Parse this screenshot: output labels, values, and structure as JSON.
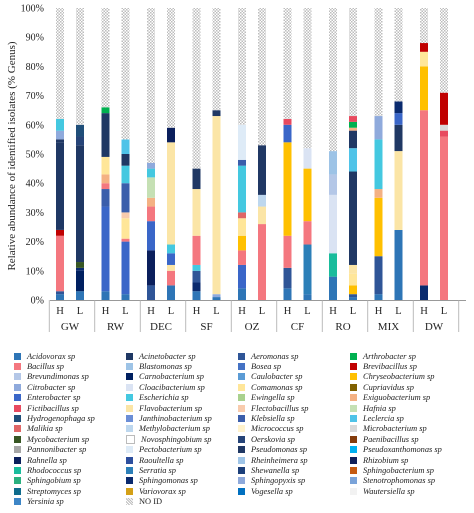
{
  "chart_data": {
    "type": "bar",
    "stacked": true,
    "ylabel": "Relative abundance of identified isolates (% Genus)",
    "ylim": [
      0,
      100
    ],
    "yticks": [
      "0%",
      "10%",
      "20%",
      "30%",
      "40%",
      "50%",
      "60%",
      "70%",
      "80%",
      "90%",
      "100%"
    ],
    "groups": [
      "GW",
      "RW",
      "DEC",
      "SF",
      "OZ",
      "CF",
      "RO",
      "MIX",
      "DW"
    ],
    "bar_labels": [
      "H",
      "L"
    ],
    "legend_placement": "bottom",
    "legend": [
      {
        "name": "Acidovorax sp",
        "color": "#2e75b6"
      },
      {
        "name": "Acinetobacter sp",
        "color": "#1f3864"
      },
      {
        "name": "Aeromonas sp",
        "color": "#2f5597"
      },
      {
        "name": "Arthrobacter sp",
        "color": "#00b050"
      },
      {
        "name": "Bacillus sp",
        "color": "#f4777f"
      },
      {
        "name": "Blastomonas sp",
        "color": "#9dc3e6"
      },
      {
        "name": "Bosea sp",
        "color": "#4472c4"
      },
      {
        "name": "Brevibacillus sp",
        "color": "#c00000"
      },
      {
        "name": "Brevundimonas sp",
        "color": "#b4c7e7"
      },
      {
        "name": "Carnobacterium sp",
        "color": "#002060"
      },
      {
        "name": "Caulobacter sp",
        "color": "#5b9bd5"
      },
      {
        "name": "Chryseobacterium sp",
        "color": "#ffc000"
      },
      {
        "name": "Citrobacter sp",
        "color": "#8faadc"
      },
      {
        "name": "Cloacibacterium sp",
        "color": "#dae3f3"
      },
      {
        "name": "Comamonas sp",
        "color": "#ffe699"
      },
      {
        "name": "Cupriavidus sp",
        "color": "#7f6000"
      },
      {
        "name": "Enterobacter sp",
        "color": "#3a66c8"
      },
      {
        "name": "Escherichia sp",
        "color": "#44c8e0"
      },
      {
        "name": "Ewingella sp",
        "color": "#a9d18e"
      },
      {
        "name": "Exiguobacterium sp",
        "color": "#f4b183"
      },
      {
        "name": "Fictibacillus sp",
        "color": "#e84a5f"
      },
      {
        "name": "Flavobacterium sp",
        "color": "#fbe5a6"
      },
      {
        "name": "Flectobacillus sp",
        "color": "#f8cbad"
      },
      {
        "name": "Hafnia sp",
        "color": "#c5e0b4"
      },
      {
        "name": "Hydrogenophaga sp",
        "color": "#1f4e79"
      },
      {
        "name": "Janthinobacterium sp",
        "color": "#6b8ed6"
      },
      {
        "name": "Klebsiella sp",
        "color": "#3b5eab"
      },
      {
        "name": "Leclercia sp",
        "color": "#4fc3e8"
      },
      {
        "name": "Malikia sp",
        "color": "#e06666"
      },
      {
        "name": "Methylobacterium sp",
        "color": "#bdd7ee"
      },
      {
        "name": "Micrococcus sp",
        "color": "#fff2cc"
      },
      {
        "name": "Microbacterium sp",
        "color": "#d9d9d9"
      },
      {
        "name": "Mycobacterium sp",
        "color": "#375623"
      },
      {
        "name": "Novosphingobium sp",
        "color": "#ffffff"
      },
      {
        "name": "Oerskovia sp",
        "color": "#264478"
      },
      {
        "name": "Paenibacillus sp",
        "color": "#843c0c"
      },
      {
        "name": "Pannonibacter sp",
        "color": "#a6a6a6"
      },
      {
        "name": "Pectobacterium sp",
        "color": "#deebf7"
      },
      {
        "name": "Pseudomonas sp",
        "color": "#203864"
      },
      {
        "name": "Pseudoxanthomonas sp",
        "color": "#00b0f0"
      },
      {
        "name": "Rahnella sp",
        "color": "#0b1f5c"
      },
      {
        "name": "Raoultella sp",
        "color": "#2d4f9e"
      },
      {
        "name": "Rheinheimera sp",
        "color": "#9fc5e8"
      },
      {
        "name": "Rhizobium sp",
        "color": "#10205a"
      },
      {
        "name": "Rhodococcus sp",
        "color": "#1abc9c"
      },
      {
        "name": "Serratia sp",
        "color": "#2c7fb8"
      },
      {
        "name": "Shewanella sp",
        "color": "#1c3f7a"
      },
      {
        "name": "Sphingobacterium sp",
        "color": "#c55a11"
      },
      {
        "name": "Sphingobium sp",
        "color": "#2ab07f"
      },
      {
        "name": "Sphingomonas sp",
        "color": "#0a2a6e"
      },
      {
        "name": "Sphingopyxis sp",
        "color": "#8ea9db"
      },
      {
        "name": "Stenotrophomonas sp",
        "color": "#7aa3d9"
      },
      {
        "name": "Streptomyces sp",
        "color": "#0e6b8c"
      },
      {
        "name": "Variovorax sp",
        "color": "#d4a017"
      },
      {
        "name": "Vogesella sp",
        "color": "#0070c0"
      },
      {
        "name": "Wautersiella sp",
        "color": "#f2f2f2"
      },
      {
        "name": "Yersinia sp",
        "color": "#3d85c6"
      },
      {
        "name": "NO ID",
        "color": "#d0d0d0"
      }
    ],
    "bars": [
      {
        "group": "GW",
        "label": "H",
        "segments": [
          {
            "name": "Acidovorax sp",
            "value": 2
          },
          {
            "name": "Aeromonas sp",
            "value": 1
          },
          {
            "name": "Bacillus sp",
            "value": 19
          },
          {
            "name": "Brevibacillus sp",
            "value": 2
          },
          {
            "name": "Acinetobacter sp",
            "value": 30
          },
          {
            "name": "Pseudomonas sp",
            "value": 1
          },
          {
            "name": "Citrobacter sp",
            "value": 3
          },
          {
            "name": "Escherichia sp",
            "value": 4
          },
          {
            "name": "NO ID",
            "value": 38
          }
        ]
      },
      {
        "group": "GW",
        "label": "L",
        "segments": [
          {
            "name": "Acidovorax sp",
            "value": 3
          },
          {
            "name": "Carnobacterium sp",
            "value": 7
          },
          {
            "name": "Sphingomonas sp",
            "value": 1
          },
          {
            "name": "Mycobacterium sp",
            "value": 2
          },
          {
            "name": "Pseudomonas sp",
            "value": 40
          },
          {
            "name": "Oerskovia sp",
            "value": 3
          },
          {
            "name": "Hydrogenophaga sp",
            "value": 4
          },
          {
            "name": "NO ID",
            "value": 40
          }
        ]
      },
      {
        "group": "RW",
        "label": "H",
        "segments": [
          {
            "name": "Acidovorax sp",
            "value": 3
          },
          {
            "name": "Enterobacter sp",
            "value": 29
          },
          {
            "name": "Klebsiella sp",
            "value": 6
          },
          {
            "name": "Bacillus sp",
            "value": 2
          },
          {
            "name": "Exiguobacterium sp",
            "value": 3
          },
          {
            "name": "Comamonas sp",
            "value": 6
          },
          {
            "name": "Acinetobacter sp",
            "value": 15
          },
          {
            "name": "Arthrobacter sp",
            "value": 2
          },
          {
            "name": "NO ID",
            "value": 34
          }
        ]
      },
      {
        "group": "RW",
        "label": "L",
        "segments": [
          {
            "name": "Acidovorax sp",
            "value": 2
          },
          {
            "name": "Enterobacter sp",
            "value": 18
          },
          {
            "name": "Bacillus sp",
            "value": 1
          },
          {
            "name": "Comamonas sp",
            "value": 7
          },
          {
            "name": "Flectobacillus sp",
            "value": 2
          },
          {
            "name": "Klebsiella sp",
            "value": 10
          },
          {
            "name": "Escherichia sp",
            "value": 6
          },
          {
            "name": "Pseudomonas sp",
            "value": 4
          },
          {
            "name": "Leclercia sp",
            "value": 5
          },
          {
            "name": "NO ID",
            "value": 45
          }
        ]
      },
      {
        "group": "DEC",
        "label": "H",
        "segments": [
          {
            "name": "Aeromonas sp",
            "value": 5
          },
          {
            "name": "Rahnella sp",
            "value": 12
          },
          {
            "name": "Enterobacter sp",
            "value": 10
          },
          {
            "name": "Bacillus sp",
            "value": 5
          },
          {
            "name": "Exiguobacterium sp",
            "value": 3
          },
          {
            "name": "Hafnia sp",
            "value": 7
          },
          {
            "name": "Escherichia sp",
            "value": 3
          },
          {
            "name": "Citrobacter sp",
            "value": 2
          },
          {
            "name": "NO ID",
            "value": 53
          }
        ]
      },
      {
        "group": "DEC",
        "label": "L",
        "segments": [
          {
            "name": "Acidovorax sp",
            "value": 5
          },
          {
            "name": "Bacillus sp",
            "value": 5
          },
          {
            "name": "Flavobacterium sp",
            "value": 2
          },
          {
            "name": "Enterobacter sp",
            "value": 4
          },
          {
            "name": "Escherichia sp",
            "value": 3
          },
          {
            "name": "Flavobacterium sp",
            "value": 35
          },
          {
            "name": "Rahnella sp",
            "value": 5
          },
          {
            "name": "NO ID",
            "value": 41
          }
        ]
      },
      {
        "group": "SF",
        "label": "H",
        "segments": [
          {
            "name": "Acidovorax sp",
            "value": 3
          },
          {
            "name": "Sphingomonas sp",
            "value": 3
          },
          {
            "name": "Aeromonas sp",
            "value": 4
          },
          {
            "name": "Escherichia sp",
            "value": 2
          },
          {
            "name": "Bacillus sp",
            "value": 10
          },
          {
            "name": "Flavobacterium sp",
            "value": 16
          },
          {
            "name": "Pseudomonas sp",
            "value": 7
          },
          {
            "name": "NO ID",
            "value": 55
          }
        ]
      },
      {
        "group": "SF",
        "label": "L",
        "segments": [
          {
            "name": "Acidovorax sp",
            "value": 1
          },
          {
            "name": "Citrobacter sp",
            "value": 1
          },
          {
            "name": "Flavobacterium sp",
            "value": 61
          },
          {
            "name": "Pseudomonas sp",
            "value": 2
          },
          {
            "name": "NO ID",
            "value": 35
          }
        ]
      },
      {
        "group": "OZ",
        "label": "H",
        "segments": [
          {
            "name": "Acidovorax sp",
            "value": 4
          },
          {
            "name": "Enterobacter sp",
            "value": 8
          },
          {
            "name": "Bacillus sp",
            "value": 5
          },
          {
            "name": "Chryseobacterium sp",
            "value": 5
          },
          {
            "name": "Comamonas sp",
            "value": 6
          },
          {
            "name": "Malikia sp",
            "value": 2
          },
          {
            "name": "Escherichia sp",
            "value": 16
          },
          {
            "name": "Klebsiella sp",
            "value": 2
          },
          {
            "name": "Pectobacterium sp",
            "value": 12
          },
          {
            "name": "NO ID",
            "value": 40
          }
        ]
      },
      {
        "group": "OZ",
        "label": "L",
        "segments": [
          {
            "name": "Bacillus sp",
            "value": 26
          },
          {
            "name": "Flavobacterium sp",
            "value": 6
          },
          {
            "name": "Methylobacterium sp",
            "value": 4
          },
          {
            "name": "Pseudomonas sp",
            "value": 17
          },
          {
            "name": "NO ID",
            "value": 47
          }
        ]
      },
      {
        "group": "CF",
        "label": "H",
        "segments": [
          {
            "name": "Acidovorax sp",
            "value": 4
          },
          {
            "name": "Aeromonas sp",
            "value": 7
          },
          {
            "name": "Bacillus sp",
            "value": 11
          },
          {
            "name": "Chryseobacterium sp",
            "value": 32
          },
          {
            "name": "Enterobacter sp",
            "value": 6
          },
          {
            "name": "Fictibacillus sp",
            "value": 2
          },
          {
            "name": "NO ID",
            "value": 38
          }
        ]
      },
      {
        "group": "CF",
        "label": "L",
        "segments": [
          {
            "name": "Acidovorax sp",
            "value": 2
          },
          {
            "name": "Serratia sp",
            "value": 17
          },
          {
            "name": "Bacillus sp",
            "value": 8
          },
          {
            "name": "Chryseobacterium sp",
            "value": 18
          },
          {
            "name": "Cloacibacterium sp",
            "value": 7
          },
          {
            "name": "NO ID",
            "value": 48
          }
        ]
      },
      {
        "group": "RO",
        "label": "H",
        "segments": [
          {
            "name": "Acidovorax sp",
            "value": 8
          },
          {
            "name": "Rhodococcus sp",
            "value": 8
          },
          {
            "name": "Cloacibacterium sp",
            "value": 20
          },
          {
            "name": "Brevundimonas sp",
            "value": 7
          },
          {
            "name": "Blastomonas sp",
            "value": 8
          },
          {
            "name": "NO ID",
            "value": 49
          }
        ]
      },
      {
        "group": "RO",
        "label": "L",
        "segments": [
          {
            "name": "Acidovorax sp",
            "value": 1
          },
          {
            "name": "Aeromonas sp",
            "value": 1
          },
          {
            "name": "Chryseobacterium sp",
            "value": 3
          },
          {
            "name": "Comamonas sp",
            "value": 4
          },
          {
            "name": "Flavobacterium sp",
            "value": 3
          },
          {
            "name": "Pseudomonas sp",
            "value": 32
          },
          {
            "name": "Leclercia sp",
            "value": 8
          },
          {
            "name": "Pseudomonas sp",
            "value": 6
          },
          {
            "name": "Exiguobacterium sp",
            "value": 1
          },
          {
            "name": "Arthrobacter sp",
            "value": 2
          },
          {
            "name": "Fictibacillus sp",
            "value": 2
          },
          {
            "name": "NO ID",
            "value": 37
          }
        ]
      },
      {
        "group": "MIX",
        "label": "H",
        "segments": [
          {
            "name": "Acidovorax sp",
            "value": 2
          },
          {
            "name": "Aeromonas sp",
            "value": 13
          },
          {
            "name": "Chryseobacterium sp",
            "value": 20
          },
          {
            "name": "Exiguobacterium sp",
            "value": 3
          },
          {
            "name": "Escherichia sp",
            "value": 17
          },
          {
            "name": "Citrobacter sp",
            "value": 8
          },
          {
            "name": "NO ID",
            "value": 37
          }
        ]
      },
      {
        "group": "MIX",
        "label": "L",
        "segments": [
          {
            "name": "Acidovorax sp",
            "value": 24
          },
          {
            "name": "Flavobacterium sp",
            "value": 27
          },
          {
            "name": "Pseudomonas sp",
            "value": 9
          },
          {
            "name": "Enterobacter sp",
            "value": 4
          },
          {
            "name": "Sphingomonas sp",
            "value": 4
          },
          {
            "name": "NO ID",
            "value": 32
          }
        ]
      },
      {
        "group": "DW",
        "label": "H",
        "segments": [
          {
            "name": "Sphingomonas sp",
            "value": 5
          },
          {
            "name": "Bacillus sp",
            "value": 60
          },
          {
            "name": "Chryseobacterium sp",
            "value": 15
          },
          {
            "name": "Comamonas sp",
            "value": 5
          },
          {
            "name": "Brevibacillus sp",
            "value": 3
          },
          {
            "name": "NO ID",
            "value": 12
          }
        ]
      },
      {
        "group": "DW",
        "label": "L",
        "segments": [
          {
            "name": "Bacillus sp",
            "value": 56
          },
          {
            "name": "Fictibacillus sp",
            "value": 2
          },
          {
            "name": "Microbacterium sp",
            "value": 2
          },
          {
            "name": "Brevibacillus sp",
            "value": 11
          },
          {
            "name": "NO ID",
            "value": 29
          }
        ]
      }
    ]
  }
}
